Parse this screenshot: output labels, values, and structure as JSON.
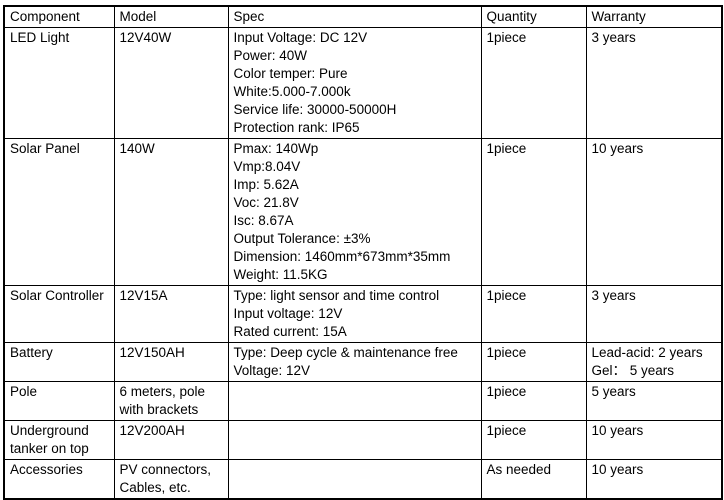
{
  "table": {
    "columns": [
      "Component",
      "Model",
      "Spec",
      "Quantity",
      "Warranty"
    ],
    "rows": [
      {
        "component": "LED Light",
        "model": "12V40W",
        "spec": [
          "Input Voltage: DC 12V",
          "Power: 40W",
          "Color temper: Pure",
          "White:5.000-7.000k",
          "Service life: 30000-50000H",
          "Protection rank: IP65"
        ],
        "quantity": "1piece",
        "warranty": [
          "3 years"
        ]
      },
      {
        "component": "Solar Panel",
        "model": "140W",
        "spec": [
          "Pmax: 140Wp",
          "Vmp:8.04V",
          "Imp: 5.62A",
          "Voc: 21.8V",
          "Isc: 8.67A",
          "Output Tolerance: ±3%",
          "Dimension: 1460mm*673mm*35mm",
          "Weight: 11.5KG"
        ],
        "quantity": "1piece",
        "warranty": [
          "10 years"
        ]
      },
      {
        "component": "Solar Controller",
        "model": "12V15A",
        "spec": [
          "Type: light sensor and time control",
          "Input voltage: 12V",
          "Rated current: 15A"
        ],
        "quantity": "1piece",
        "warranty": [
          "3 years"
        ]
      },
      {
        "component": "Battery",
        "model": "12V150AH",
        "spec": [
          "Type: Deep cycle & maintenance free",
          "Voltage: 12V"
        ],
        "quantity": "1piece",
        "warranty": [
          "Lead-acid: 2 years",
          "Gel： 5 years"
        ]
      },
      {
        "component": "Pole",
        "model": "6 meters, pole with brackets",
        "spec": [],
        "quantity": "1piece",
        "warranty": [
          "5 years"
        ]
      },
      {
        "component": "Underground tanker on top",
        "model": "12V200AH",
        "spec": [],
        "quantity": "1piece",
        "warranty": [
          "10 years"
        ]
      },
      {
        "component": "Accessories",
        "model": "PV connectors, Cables, etc.",
        "spec": [],
        "quantity": "As needed",
        "warranty": [
          "10 years"
        ]
      }
    ]
  }
}
